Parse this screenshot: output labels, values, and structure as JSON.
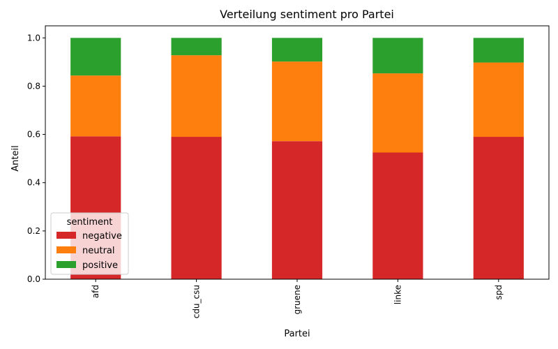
{
  "chart_data": {
    "type": "bar",
    "stacked": true,
    "title": "Verteilung sentiment pro Partei",
    "xlabel": "Partei",
    "ylabel": "Anteil",
    "categories": [
      "afd",
      "cdu_csu",
      "gruene",
      "linke",
      "spd"
    ],
    "series": [
      {
        "name": "negative",
        "color": "#d62728",
        "values": [
          0.592,
          0.59,
          0.572,
          0.525,
          0.59
        ]
      },
      {
        "name": "neutral",
        "color": "#ff7f0e",
        "values": [
          0.252,
          0.338,
          0.33,
          0.328,
          0.308
        ]
      },
      {
        "name": "positive",
        "color": "#2ca02c",
        "values": [
          0.156,
          0.072,
          0.098,
          0.147,
          0.102
        ]
      }
    ],
    "ylim": [
      0,
      1.05
    ],
    "yticks": [
      "0.0",
      "0.2",
      "0.4",
      "0.6",
      "0.8",
      "1.0"
    ],
    "legend": {
      "title": "sentiment",
      "placement": "lower-left"
    },
    "grid": false
  }
}
